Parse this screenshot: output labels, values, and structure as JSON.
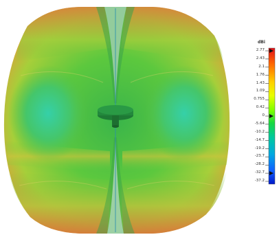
{
  "legend": {
    "unit": "dBi",
    "ticks": [
      "2.77",
      "2.43",
      "2.1",
      "1.76",
      "1.43",
      "1.09",
      "0.755",
      "0.42",
      "0",
      "-5.64",
      "-10.2",
      "-14.7",
      "-19.2",
      "-23.7",
      "-28.2",
      "-32.7",
      "-37.2"
    ],
    "markers": [
      "2.77",
      "0",
      "-32.7"
    ],
    "colors": [
      "#e0101a",
      "#ff6a00",
      "#ffd000",
      "#e8ff00",
      "#7cff00",
      "#18d840",
      "#00c8a0",
      "#00a8e0",
      "#1060ff",
      "#0018c8"
    ]
  },
  "pattern": {
    "surface_colors": [
      "#2fc43d",
      "#8fd33a",
      "#d9b93a",
      "#e0703a",
      "#3ccf8e"
    ],
    "feed_color": "#1e7a35"
  }
}
